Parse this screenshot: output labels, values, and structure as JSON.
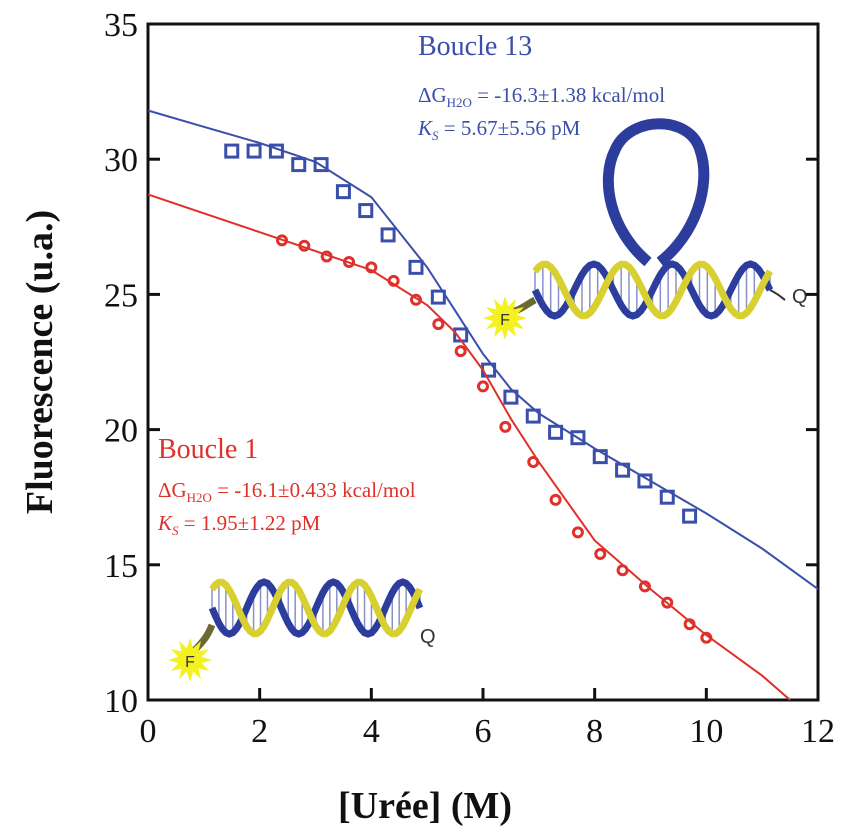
{
  "chart_data": {
    "type": "scatter",
    "x_label": "[Urée] (M)",
    "y_label": "Fluorescence (u.a.)",
    "xlim": [
      0,
      12
    ],
    "xticks": [
      0,
      2,
      4,
      6,
      8,
      10,
      12
    ],
    "ylim": [
      10,
      35
    ],
    "yticks": [
      10,
      15,
      20,
      25,
      30,
      35
    ],
    "series": [
      {
        "name": "Boucle 13",
        "color": "#3a4faa",
        "marker": "square",
        "x": [
          1.5,
          1.9,
          2.3,
          2.7,
          3.1,
          3.5,
          3.9,
          4.3,
          4.8,
          5.2,
          5.6,
          6.1,
          6.5,
          6.9,
          7.3,
          7.7,
          8.1,
          8.5,
          8.9,
          9.3,
          9.7
        ],
        "values": [
          30.3,
          30.3,
          30.3,
          29.8,
          29.8,
          28.8,
          28.1,
          27.2,
          26.0,
          24.9,
          23.5,
          22.2,
          21.2,
          20.5,
          19.9,
          19.7,
          19.0,
          18.5,
          18.1,
          17.5,
          16.8
        ],
        "fit_x": [
          0,
          1,
          2,
          3,
          4,
          5,
          5.5,
          6,
          6.5,
          7,
          8,
          9,
          10,
          11,
          12
        ],
        "fit_values": [
          31.8,
          31.2,
          30.6,
          29.9,
          28.6,
          26.0,
          24.4,
          22.8,
          21.5,
          20.6,
          19.3,
          18.1,
          16.9,
          15.6,
          14.1
        ]
      },
      {
        "name": "Boucle 1",
        "color": "#e0302a",
        "marker": "circle",
        "x": [
          2.4,
          2.8,
          3.2,
          3.6,
          4.0,
          4.4,
          4.8,
          5.2,
          5.6,
          6.0,
          6.4,
          6.9,
          7.3,
          7.7,
          8.1,
          8.5,
          8.9,
          9.3,
          9.7,
          10.0
        ],
        "values": [
          27.0,
          26.8,
          26.4,
          26.2,
          26.0,
          25.5,
          24.8,
          23.9,
          22.9,
          21.6,
          20.1,
          18.8,
          17.4,
          16.2,
          15.4,
          14.8,
          14.2,
          13.6,
          12.8,
          12.3
        ],
        "fit_x": [
          0,
          1,
          2,
          3,
          4,
          5,
          5.5,
          6,
          6.5,
          7,
          8,
          9,
          10,
          11,
          11.5
        ],
        "fit_values": [
          28.7,
          28.0,
          27.3,
          26.6,
          25.9,
          24.6,
          23.6,
          22.2,
          20.4,
          18.8,
          15.9,
          14.1,
          12.4,
          10.9,
          10.0
        ]
      }
    ],
    "annotations": [
      {
        "dg": "ΔG",
        "dg_sub": "H2O",
        "dg_text": " = -16.3±1.38 kcal/mol",
        "ks": "K",
        "ks_sub": "S",
        "ks_text": " = 5.67±5.56 pM"
      },
      {
        "dg": "ΔG",
        "dg_sub": "H2O",
        "dg_text": " = -16.1±0.433 kcal/mol",
        "ks": "K",
        "ks_sub": "S",
        "ks_text": " = 1.95±1.22 pM"
      }
    ],
    "fluorophore": "F",
    "quencher": "Q"
  }
}
